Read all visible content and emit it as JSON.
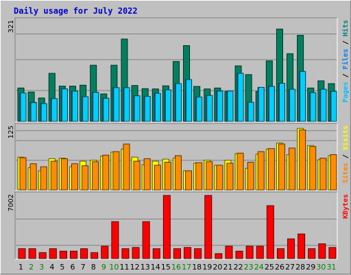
{
  "chart_data": [
    {
      "type": "bar",
      "title": "Daily usage for July 2022",
      "categories": [
        "1",
        "2",
        "3",
        "4",
        "5",
        "6",
        "7",
        "8",
        "9",
        "10",
        "11",
        "12",
        "13",
        "14",
        "15",
        "16",
        "17",
        "18",
        "19",
        "20",
        "21",
        "22",
        "23",
        "24",
        "25",
        "26",
        "27",
        "28",
        "29",
        "30",
        "31"
      ],
      "weekend_days": [
        2,
        3,
        9,
        10,
        16,
        17,
        23,
        24,
        30,
        31
      ],
      "ymax_label": "321",
      "ylim": [
        0,
        321
      ],
      "legend": [
        {
          "name": "Pages",
          "color": "#00c0ff"
        },
        {
          "sep": " / "
        },
        {
          "name": "Files",
          "color": "#0080ff"
        },
        {
          "sep": " / "
        },
        {
          "name": "Hits",
          "color": "#008080"
        }
      ],
      "series": [
        {
          "name": "Hits",
          "color": "#008060",
          "values": [
            107,
            94,
            75,
            154,
            113,
            113,
            116,
            180,
            88,
            180,
            264,
            115,
            105,
            104,
            114,
            192,
            243,
            112,
            104,
            107,
            96,
            178,
            150,
            96,
            194,
            296,
            217,
            276,
            107,
            130,
            121
          ]
        },
        {
          "name": "Files",
          "color": "#0080ff",
          "values": [
            89,
            61,
            57,
            73,
            104,
            97,
            79,
            93,
            74,
            108,
            108,
            82,
            80,
            90,
            101,
            121,
            134,
            78,
            83,
            97,
            97,
            154,
            61,
            109,
            112,
            122,
            103,
            160,
            92,
            103,
            96
          ]
        },
        {
          "name": "Pages",
          "color": "#00d0ff",
          "values": [
            91,
            60,
            57,
            73,
            104,
            97,
            79,
            93,
            74,
            108,
            108,
            82,
            80,
            90,
            101,
            121,
            134,
            78,
            83,
            97,
            97,
            154,
            61,
            109,
            112,
            122,
            103,
            160,
            92,
            103,
            96
          ]
        }
      ]
    },
    {
      "type": "bar",
      "ymax_label": "125",
      "ylim": [
        0,
        125
      ],
      "legend": [
        {
          "name": "Sites",
          "color": "#ff8000"
        },
        {
          "sep": " / "
        },
        {
          "name": "Visits",
          "color": "#ffff00"
        }
      ],
      "series": [
        {
          "name": "Visits",
          "color": "#ffff00",
          "values": [
            65,
            44,
            38,
            62,
            63,
            46,
            57,
            59,
            67,
            75,
            81,
            65,
            50,
            57,
            61,
            63,
            38,
            53,
            59,
            49,
            59,
            72,
            43,
            71,
            81,
            93,
            70,
            122,
            88,
            60,
            68
          ]
        },
        {
          "name": "Sites",
          "color": "#ff8c00",
          "values": [
            64,
            52,
            46,
            57,
            62,
            52,
            48,
            56,
            69,
            76,
            91,
            57,
            62,
            49,
            55,
            68,
            38,
            54,
            56,
            49,
            53,
            73,
            55,
            76,
            82,
            91,
            83,
            119,
            86,
            63,
            70
          ]
        }
      ]
    },
    {
      "type": "bar",
      "ymax_label": "7002",
      "ylim": [
        0,
        7002
      ],
      "legend": [
        {
          "name": "KBytes",
          "color": "#ff0000"
        }
      ],
      "series": [
        {
          "name": "KBytes",
          "color": "#ff0000",
          "values": [
            1092,
            1092,
            655,
            1092,
            818,
            818,
            1092,
            655,
            1365,
            4095,
            1092,
            1228,
            4095,
            1092,
            7002,
            1092,
            1228,
            1092,
            7002,
            546,
            1365,
            818,
            1365,
            1365,
            5868,
            1092,
            2184,
            2730,
            1092,
            1638,
            1228
          ]
        }
      ]
    }
  ]
}
